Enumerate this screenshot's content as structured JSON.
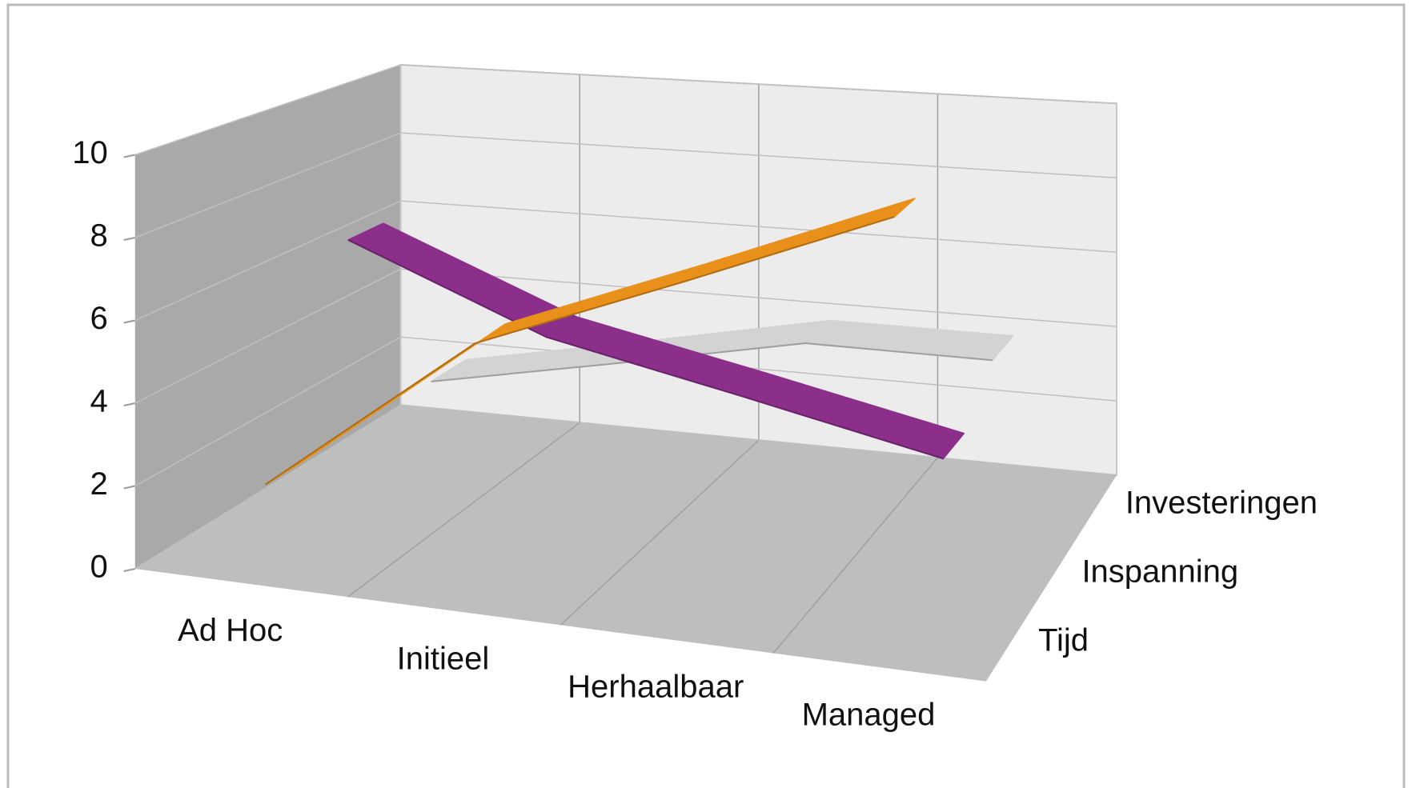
{
  "chart_data": {
    "type": "line3d",
    "categories": [
      "Ad Hoc",
      "Initieel",
      "Herhaalbaar",
      "Managed"
    ],
    "series": [
      {
        "name": "Tijd",
        "color": "#e8901a",
        "values": [
          2,
          6,
          8,
          10
        ]
      },
      {
        "name": "Inspanning",
        "color": "#8b2f8b",
        "values": [
          7,
          5,
          4,
          3
        ]
      },
      {
        "name": "Investeringen",
        "color": "#d3d3d3",
        "values": [
          2,
          3,
          4,
          4
        ]
      }
    ],
    "ylim": [
      0,
      10
    ],
    "yticks": [
      0,
      2,
      4,
      6,
      8,
      10
    ],
    "grid": true
  }
}
